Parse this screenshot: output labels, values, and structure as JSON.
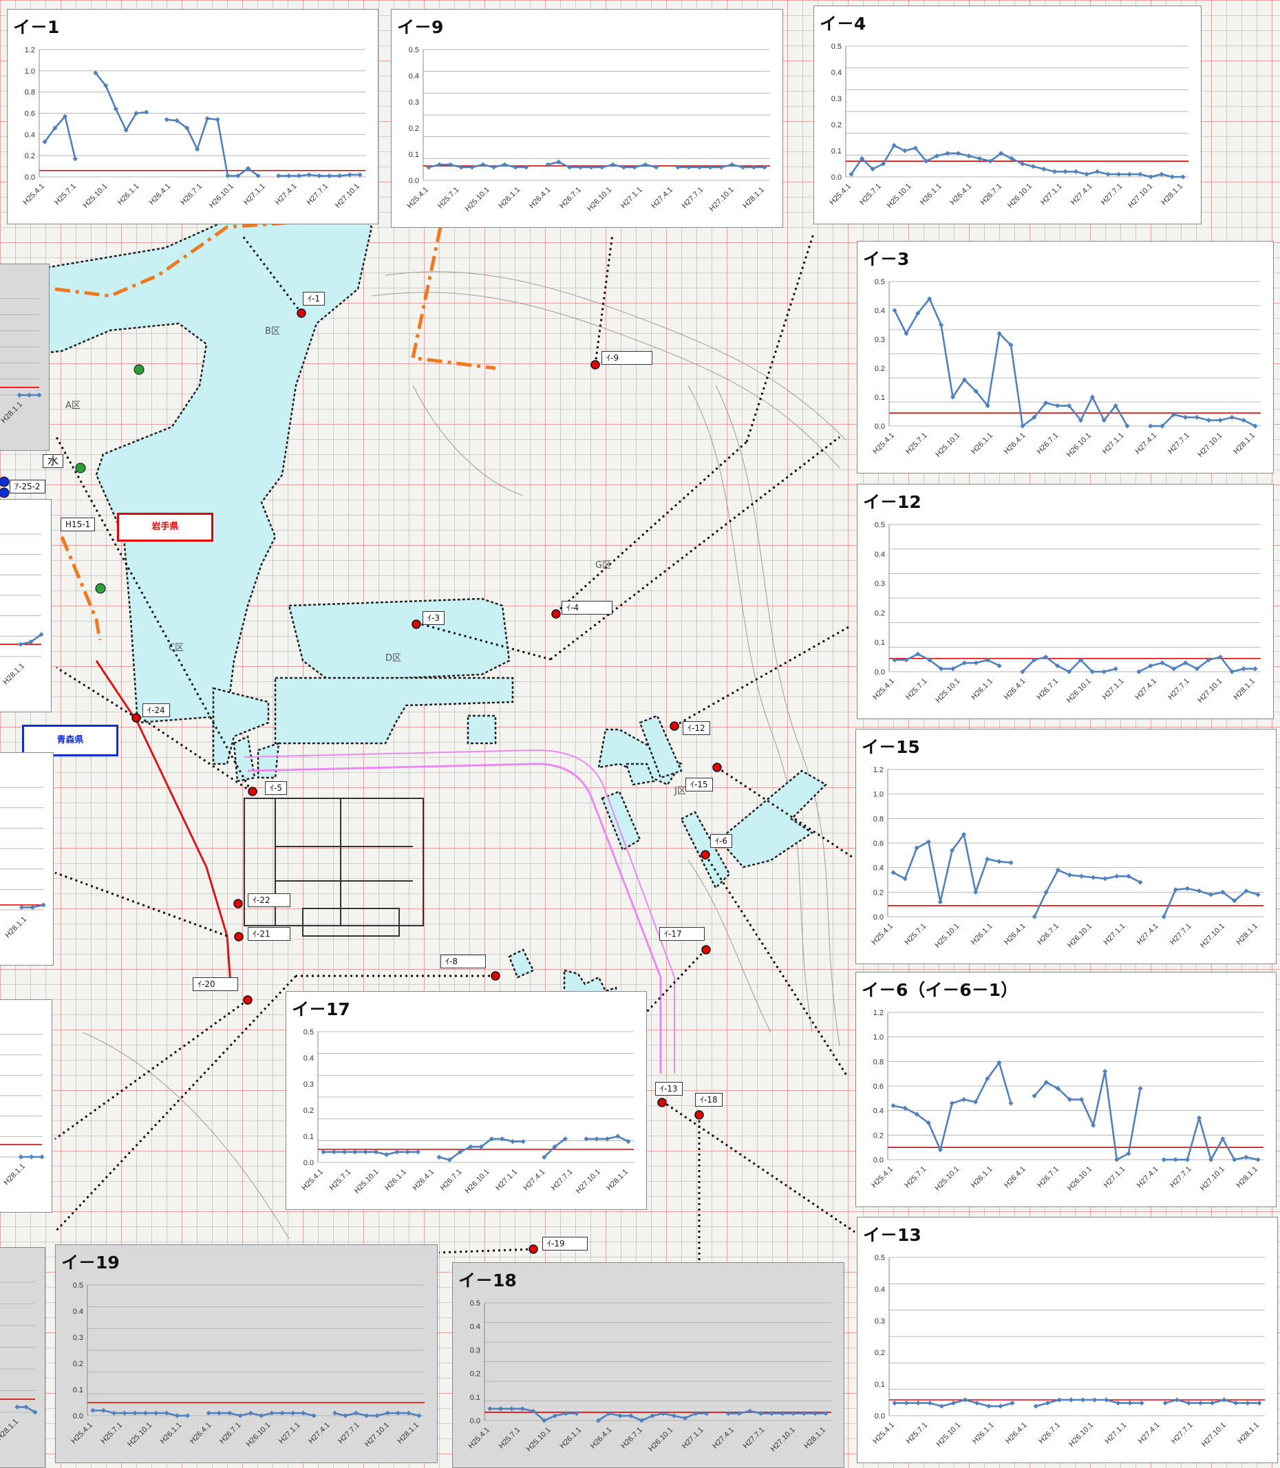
{
  "colors": {
    "series": "#4f81bd",
    "reference": "#e00000",
    "well_marker": "#e00000",
    "green_marker": "#2e9e3a",
    "blue_marker": "#1030d0",
    "area_fill": "#c9f1f3",
    "boundary": "#f07820"
  },
  "map": {
    "prefecture_iwate": "岩手県",
    "prefecture_aomori": "青森県",
    "zones": [
      "A区",
      "B区",
      "C区",
      "D区",
      "G区",
      "J区"
    ],
    "side_labels": [
      "ｱ-25-2",
      "H15-1",
      "水"
    ]
  },
  "well_labels": [
    {
      "id": "i1",
      "text": "ｲ-1"
    },
    {
      "id": "i9",
      "text": "ｲ-9"
    },
    {
      "id": "i4",
      "text": "ｲ-4"
    },
    {
      "id": "i3",
      "text": "ｲ-3"
    },
    {
      "id": "i12",
      "text": "ｲ-12"
    },
    {
      "id": "i15",
      "text": "ｲ-15"
    },
    {
      "id": "i6",
      "text": "ｲ-6"
    },
    {
      "id": "i5",
      "text": "ｲ-5"
    },
    {
      "id": "i24",
      "text": "ｲ-24"
    },
    {
      "id": "i22",
      "text": "ｲ-22"
    },
    {
      "id": "i21",
      "text": "ｲ-21"
    },
    {
      "id": "i20",
      "text": "ｲ-20"
    },
    {
      "id": "i8",
      "text": "ｲ-8"
    },
    {
      "id": "i17",
      "text": "ｲ-17"
    },
    {
      "id": "i13",
      "text": "ｲ-13"
    },
    {
      "id": "i18",
      "text": "ｲ-18"
    },
    {
      "id": "i19",
      "text": "ｲ-19"
    }
  ],
  "chart_data": [
    {
      "id": "c1",
      "title": "イ－1",
      "type": "line",
      "ylim": [
        0,
        1.2
      ],
      "yticks": [
        "0.0",
        "0.2",
        "0.4",
        "0.6",
        "0.8",
        "1.0",
        "1.2"
      ],
      "xticks": [
        "H25.4.1",
        "H25.7.1",
        "H25.10.1",
        "H26.1.1",
        "H26.4.1",
        "H26.7.1",
        "H26.10.1",
        "H27.1.1",
        "H27.4.1",
        "H27.7.1",
        "H27.10.1"
      ],
      "reference": 0.06,
      "values": [
        0.33,
        0.46,
        0.57,
        0.17,
        null,
        0.98,
        0.86,
        0.64,
        0.44,
        0.6,
        0.61,
        null,
        0.54,
        0.53,
        0.46,
        0.26,
        0.55,
        0.54,
        0.01,
        0.01,
        0.08,
        0.01,
        null,
        0.01,
        0.01,
        0.01,
        0.02,
        0.01,
        0.01,
        0.01,
        0.02,
        0.02
      ]
    },
    {
      "id": "c9",
      "title": "イ－9",
      "type": "line",
      "ylim": [
        0,
        0.5
      ],
      "yticks": [
        "0.0",
        "0.1",
        "0.2",
        "0.3",
        "0.4",
        "0.5"
      ],
      "xticks": [
        "H25.4.1",
        "H25.7.1",
        "H25.10.1",
        "H26.1.1",
        "H26.4.1",
        "H26.7.1",
        "H26.10.1",
        "H27.1.1",
        "H27.4.1",
        "H27.7.1",
        "H27.10.1",
        "H28.1.1"
      ],
      "reference": 0.055,
      "values": [
        0.05,
        0.06,
        0.06,
        0.05,
        0.05,
        0.06,
        0.05,
        0.06,
        0.05,
        0.05,
        null,
        0.06,
        0.07,
        0.05,
        0.05,
        0.05,
        0.05,
        0.06,
        0.05,
        0.05,
        0.06,
        0.05,
        null,
        0.05,
        0.05,
        0.05,
        0.05,
        0.05,
        0.06,
        0.05,
        0.05,
        0.05
      ]
    },
    {
      "id": "c4",
      "title": "イ－4",
      "type": "line",
      "ylim": [
        0,
        0.5
      ],
      "yticks": [
        "0.0",
        "0.1",
        "0.2",
        "0.3",
        "0.4",
        "0.5"
      ],
      "xticks": [
        "H25.4.1",
        "H25.7.1",
        "H25.10.1",
        "H26.1.1",
        "H26.4.1",
        "H26.7.1",
        "H26.10.1",
        "H27.1.1",
        "H27.4.1",
        "H27.7.1",
        "H27.10.1",
        "H28.1.1"
      ],
      "reference": 0.06,
      "values": [
        0.01,
        0.07,
        0.03,
        0.05,
        0.12,
        0.1,
        0.11,
        0.06,
        0.08,
        0.09,
        0.09,
        0.08,
        0.07,
        0.06,
        0.09,
        0.07,
        0.05,
        0.04,
        0.03,
        0.02,
        0.02,
        0.02,
        0.01,
        0.02,
        0.01,
        0.01,
        0.01,
        0.01,
        0.0,
        0.01,
        0.0,
        0.0
      ]
    },
    {
      "id": "c3",
      "title": "イ－3",
      "type": "line",
      "ylim": [
        0,
        0.5
      ],
      "yticks": [
        "0.0",
        "0.1",
        "0.2",
        "0.3",
        "0.4",
        "0.5"
      ],
      "xticks": [
        "H25.4.1",
        "H25.7.1",
        "H25.10.1",
        "H26.1.1",
        "H26.4.1",
        "H26.7.1",
        "H26.10.1",
        "H27.1.1",
        "H27.4.1",
        "H27.7.1",
        "H27.10.1",
        "H28.1.1"
      ],
      "reference": 0.045,
      "values": [
        0.4,
        0.32,
        0.39,
        0.44,
        0.35,
        0.1,
        0.16,
        0.12,
        0.07,
        0.32,
        0.28,
        0.0,
        0.03,
        0.08,
        0.07,
        0.07,
        0.02,
        0.1,
        0.02,
        0.07,
        0.0,
        null,
        0.0,
        0.0,
        0.04,
        0.03,
        0.03,
        0.02,
        0.02,
        0.03,
        0.02,
        0.0
      ]
    },
    {
      "id": "c12",
      "title": "イ－12",
      "type": "line",
      "ylim": [
        0,
        0.5
      ],
      "yticks": [
        "0.0",
        "0.1",
        "0.2",
        "0.3",
        "0.4",
        "0.5"
      ],
      "xticks": [
        "H25.4.1",
        "H25.7.1",
        "H25.10.1",
        "H26.1.1",
        "H26.4.1",
        "H26.7.1",
        "H26.10.1",
        "H27.1.1",
        "H27.4.1",
        "H27.7.1",
        "H27.10.1",
        "H28.1.1"
      ],
      "reference": 0.045,
      "values": [
        0.04,
        0.04,
        0.06,
        0.04,
        0.01,
        0.01,
        0.03,
        0.03,
        0.04,
        0.02,
        null,
        0.0,
        0.04,
        0.05,
        0.02,
        0.0,
        0.04,
        0.0,
        0.0,
        0.01,
        null,
        0.0,
        0.02,
        0.03,
        0.01,
        0.03,
        0.01,
        0.04,
        0.05,
        0.0,
        0.01,
        0.01
      ]
    },
    {
      "id": "c15",
      "title": "イ－15",
      "type": "line",
      "ylim": [
        0,
        1.2
      ],
      "yticks": [
        "0.0",
        "0.2",
        "0.4",
        "0.6",
        "0.8",
        "1.0",
        "1.2"
      ],
      "xticks": [
        "H25.4.1",
        "H25.7.1",
        "H25.10.1",
        "H26.1.1",
        "H26.4.1",
        "H26.7.1",
        "H26.10.1",
        "H27.1.1",
        "H27.4.1",
        "H27.7.1",
        "H27.10.1",
        "H28.1.1"
      ],
      "reference": 0.09,
      "values": [
        0.36,
        0.31,
        0.56,
        0.61,
        0.12,
        0.54,
        0.67,
        0.2,
        0.47,
        0.45,
        0.44,
        null,
        0.0,
        0.2,
        0.38,
        0.34,
        0.33,
        0.32,
        0.31,
        0.33,
        0.33,
        0.28,
        null,
        0.0,
        0.22,
        0.23,
        0.21,
        0.18,
        0.2,
        0.13,
        0.21,
        0.18
      ]
    },
    {
      "id": "c6",
      "title": "イ－6（イ－6－1）",
      "type": "line",
      "ylim": [
        0,
        1.2
      ],
      "yticks": [
        "0.0",
        "0.2",
        "0.4",
        "0.6",
        "0.8",
        "1.0",
        "1.2"
      ],
      "xticks": [
        "H25.4.1",
        "H25.7.1",
        "H25.10.1",
        "H26.1.1",
        "H26.4.1",
        "H26.7.1",
        "H26.10.1",
        "H27.1.1",
        "H27.4.1",
        "H27.7.1",
        "H27.10.1",
        "H28.1.1"
      ],
      "reference": 0.1,
      "values": [
        0.44,
        0.42,
        0.37,
        0.3,
        0.08,
        0.46,
        0.49,
        0.47,
        0.66,
        0.79,
        0.46,
        null,
        0.52,
        0.63,
        0.58,
        0.49,
        0.49,
        0.28,
        0.72,
        0.0,
        0.05,
        0.58,
        null,
        0.0,
        0.0,
        0.0,
        0.34,
        0.0,
        0.17,
        0.0,
        0.02,
        0.0
      ]
    },
    {
      "id": "c13",
      "title": "イ－13",
      "type": "line",
      "ylim": [
        0,
        0.5
      ],
      "yticks": [
        "0.0",
        "0.1",
        "0.2",
        "0.3",
        "0.4",
        "0.5"
      ],
      "xticks": [
        "H25.4.1",
        "H25.7.1",
        "H25.10.1",
        "H26.1.1",
        "H26.4.1",
        "H26.7.1",
        "H26.10.1",
        "H27.1.1",
        "H27.4.1",
        "H27.7.1",
        "H27.10.1",
        "H28.1.1"
      ],
      "reference": 0.05,
      "values": [
        0.04,
        0.04,
        0.04,
        0.04,
        0.03,
        0.04,
        0.05,
        0.04,
        0.03,
        0.03,
        0.04,
        null,
        0.03,
        0.04,
        0.05,
        0.05,
        0.05,
        0.05,
        0.05,
        0.04,
        0.04,
        0.04,
        null,
        0.04,
        0.05,
        0.04,
        0.04,
        0.04,
        0.05,
        0.04,
        0.04,
        0.04
      ]
    },
    {
      "id": "c17",
      "title": "イ－17",
      "type": "line",
      "ylim": [
        0,
        0.5
      ],
      "yticks": [
        "0.0",
        "0.1",
        "0.2",
        "0.3",
        "0.4",
        "0.5"
      ],
      "xticks": [
        "H25.4.1",
        "H25.7.1",
        "H25.10.1",
        "H26.1.1",
        "H26.4.1",
        "H26.7.1",
        "H26.10.1",
        "H27.1.1",
        "H27.4.1",
        "H27.7.1",
        "H27.10.1",
        "H28.1.1"
      ],
      "reference": 0.05,
      "values": [
        0.04,
        0.04,
        0.04,
        0.04,
        0.04,
        0.04,
        0.03,
        0.04,
        0.04,
        0.04,
        null,
        0.02,
        0.01,
        0.04,
        0.06,
        0.06,
        0.09,
        0.09,
        0.08,
        0.08,
        null,
        0.02,
        0.06,
        0.09,
        null,
        0.09,
        0.09,
        0.09,
        0.1,
        0.08
      ]
    },
    {
      "id": "c19",
      "title": "イ－19",
      "type": "line",
      "ylim": [
        0,
        0.5
      ],
      "yticks": [
        "0.0",
        "0.1",
        "0.2",
        "0.3",
        "0.4",
        "0.5"
      ],
      "xticks": [
        "H25.4.1",
        "H25.7.1",
        "H25.10.1",
        "H26.1.1",
        "H26.4.1",
        "H26.7.1",
        "H26.10.1",
        "H27.1.1",
        "H27.4.1",
        "H27.7.1",
        "H27.10.1",
        "H28.1.1"
      ],
      "reference": 0.05,
      "values": [
        0.02,
        0.02,
        0.01,
        0.01,
        0.01,
        0.01,
        0.01,
        0.01,
        0.0,
        0.0,
        null,
        0.01,
        0.01,
        0.01,
        0.0,
        0.01,
        0.0,
        0.01,
        0.01,
        0.01,
        0.01,
        0.0,
        null,
        0.01,
        0.0,
        0.01,
        0.0,
        0.0,
        0.01,
        0.01,
        0.01,
        0.0
      ]
    },
    {
      "id": "c18",
      "title": "イ－18",
      "type": "line",
      "ylim": [
        0,
        0.5
      ],
      "yticks": [
        "0.0",
        "0.1",
        "0.2",
        "0.3",
        "0.4",
        "0.5"
      ],
      "xticks": [
        "H25.4.1",
        "H25.7.1",
        "H25.10.1",
        "H26.1.1",
        "H26.4.1",
        "H26.7.1",
        "H26.10.1",
        "H27.1.1",
        "H27.4.1",
        "H27.7.1",
        "H27.10.1",
        "H28.1.1"
      ],
      "reference": 0.035,
      "values": [
        0.05,
        0.05,
        0.05,
        0.05,
        0.04,
        0.0,
        0.02,
        0.03,
        0.03,
        null,
        0.0,
        0.03,
        0.02,
        0.02,
        0.0,
        0.02,
        0.03,
        0.02,
        0.01,
        0.03,
        0.03,
        null,
        0.03,
        0.03,
        0.04,
        0.03,
        0.03,
        0.03,
        0.03,
        0.03,
        0.03,
        0.03
      ]
    },
    {
      "id": "cL1",
      "title": "",
      "type": "line",
      "ylim": [
        0,
        0.5
      ],
      "yticks": [],
      "xticks": [
        "H28.1.1"
      ],
      "reference": 0.04,
      "values": [
        0.0,
        0.0,
        0.0
      ]
    },
    {
      "id": "cL2",
      "title": "",
      "type": "line",
      "ylim": [
        0,
        0.5
      ],
      "yticks": [],
      "xticks": [
        "H28.1.1"
      ],
      "reference": 0.05,
      "values": [
        0.05,
        0.06,
        0.09
      ]
    },
    {
      "id": "cL3",
      "title": "",
      "type": "line",
      "ylim": [
        0,
        0.5
      ],
      "yticks": [],
      "xticks": [
        "H28.1.1"
      ],
      "reference": 0.02,
      "values": [
        0.01,
        0.01,
        0.02
      ]
    },
    {
      "id": "cL4",
      "title": "",
      "type": "line",
      "ylim": [
        0,
        0.5
      ],
      "yticks": [],
      "xticks": [
        "H28.1.1"
      ],
      "reference": 0.05,
      "values": [
        0.0,
        0.0,
        0.0
      ]
    },
    {
      "id": "cL5",
      "title": "",
      "type": "line",
      "ylim": [
        0,
        0.5
      ],
      "yticks": [],
      "xticks": [
        "H28.1.1"
      ],
      "reference": 0.05,
      "values": [
        0.02,
        0.02,
        0.0
      ]
    }
  ]
}
